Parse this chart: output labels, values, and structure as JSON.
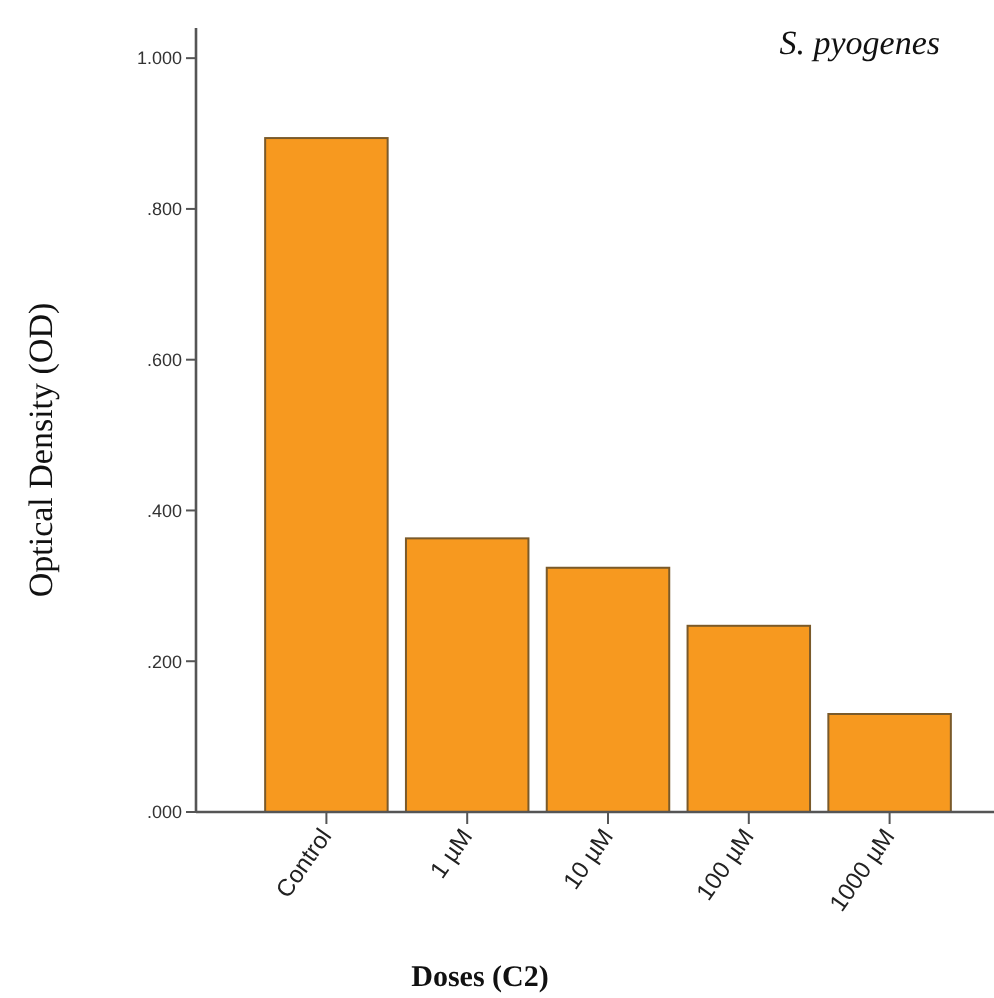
{
  "chart_data": {
    "type": "bar",
    "title": "S. pyogenes",
    "xlabel": "Doses (C2)",
    "ylabel": "Optical Density (OD)",
    "categories": [
      "Control",
      "1 µM",
      "10 µM",
      "100 µM",
      "1000 µM"
    ],
    "values": [
      0.894,
      0.363,
      0.324,
      0.247,
      0.13
    ],
    "color": "#f7991f",
    "ylim": [
      0,
      1.04
    ],
    "yticks": [
      {
        "value": 0,
        "label": ".000"
      },
      {
        "value": 0.2,
        "label": ".200"
      },
      {
        "value": 0.4,
        "label": ".400"
      },
      {
        "value": 0.6,
        "label": ".600"
      },
      {
        "value": 0.8,
        "label": ".800"
      },
      {
        "value": 1,
        "label": "1.000"
      }
    ],
    "grid": false
  }
}
